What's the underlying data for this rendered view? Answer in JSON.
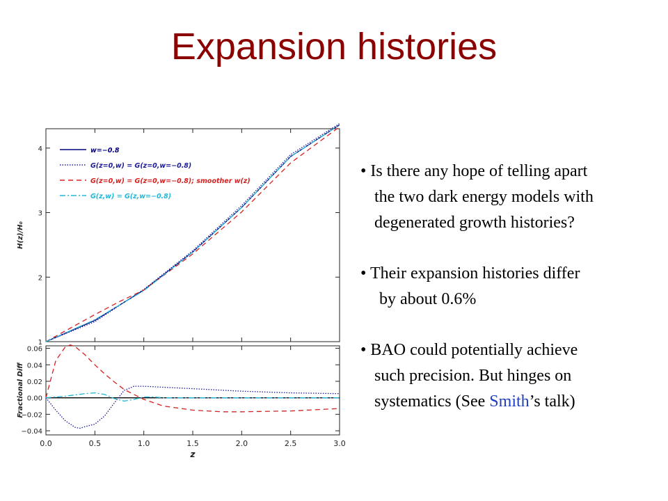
{
  "slide": {
    "title": "Expansion histories",
    "bullets": [
      {
        "lines": [
          "• Is there any hope of telling apart",
          "the two dark energy models with",
          "degenerated growth histories?"
        ]
      },
      {
        "lines": [
          "• Their expansion histories differ",
          "by about 0.6%"
        ]
      },
      {
        "lines": [
          "• BAO could potentially achieve",
          "such precision. But hinges on",
          "systematics (See "
        ],
        "highlight": "Smith",
        "tail": "’s talk)"
      }
    ]
  },
  "chart_data": [
    {
      "type": "line",
      "panel": "top",
      "ylabel": "H(z)/H₀",
      "xlim": [
        0,
        3
      ],
      "ylim": [
        1,
        4.3
      ],
      "yticks": [
        "1",
        "2",
        "3",
        "4"
      ],
      "legend_placement": "top-left",
      "series": [
        {
          "name": "w=−0.8",
          "color": "#000080",
          "dash": "solid",
          "x": [
            0,
            0.5,
            1,
            1.5,
            2,
            2.5,
            3
          ],
          "y": [
            1.0,
            1.33,
            1.8,
            2.39,
            3.08,
            3.87,
            4.36
          ]
        },
        {
          "name": "G(z=0,w) = G(z=0,w=−0.8)",
          "color": "#1a1a9a",
          "dash": "dotted",
          "x": [
            0,
            0.5,
            1,
            1.5,
            2,
            2.5,
            3
          ],
          "y": [
            1.0,
            1.31,
            1.81,
            2.41,
            3.11,
            3.9,
            4.38
          ]
        },
        {
          "name": "G(z=0,w) = G(z=0,w=−0.8); smoother w(z)",
          "color": "#d62020",
          "dash": "dashed",
          "x": [
            0,
            0.25,
            0.5,
            0.75,
            1,
            1.5,
            2,
            2.5,
            3
          ],
          "y": [
            1.0,
            1.21,
            1.42,
            1.62,
            1.8,
            2.36,
            3.01,
            3.77,
            4.33
          ]
        },
        {
          "name": "G(z,w) = G(z,w=−0.8)",
          "color": "#20b8d8",
          "dash": "dashdot",
          "x": [
            0,
            0.5,
            1,
            1.5,
            2,
            2.5,
            3
          ],
          "y": [
            1.0,
            1.34,
            1.79,
            2.39,
            3.08,
            3.87,
            4.36
          ]
        }
      ]
    },
    {
      "type": "line",
      "panel": "bottom",
      "xlabel": "z",
      "ylabel": "Fractional Diff",
      "xlim": [
        0,
        3
      ],
      "ylim": [
        -0.045,
        0.063
      ],
      "xticks": [
        "0.0",
        "0.5",
        "1.0",
        "1.5",
        "2.0",
        "2.5",
        "3.0"
      ],
      "yticks": [
        "−0.04",
        "−0.02",
        "0.00",
        "0.02",
        "0.04",
        "0.06"
      ],
      "series": [
        {
          "color": "#000000",
          "dash": "solid",
          "x": [
            0,
            3
          ],
          "y": [
            0,
            0
          ]
        },
        {
          "color": "#1a1a9a",
          "dash": "dotted",
          "x": [
            0,
            0.1,
            0.2,
            0.3,
            0.35,
            0.4,
            0.5,
            0.6,
            0.7,
            0.8,
            0.9,
            1.0,
            1.5,
            2.0,
            2.5,
            3.0
          ],
          "y": [
            0,
            -0.015,
            -0.028,
            -0.036,
            -0.037,
            -0.035,
            -0.032,
            -0.022,
            -0.006,
            0.009,
            0.014,
            0.014,
            0.011,
            0.008,
            0.006,
            0.005
          ]
        },
        {
          "color": "#d62020",
          "dash": "dashed",
          "x": [
            0,
            0.1,
            0.2,
            0.25,
            0.3,
            0.4,
            0.5,
            0.6,
            0.7,
            0.8,
            1.0,
            1.2,
            1.5,
            1.8,
            2.0,
            2.5,
            3.0
          ],
          "y": [
            0,
            0.045,
            0.062,
            0.064,
            0.062,
            0.052,
            0.04,
            0.029,
            0.019,
            0.01,
            -0.002,
            -0.01,
            -0.015,
            -0.017,
            -0.017,
            -0.016,
            -0.013
          ]
        },
        {
          "color": "#20b8d8",
          "dash": "dashdot",
          "x": [
            0,
            0.2,
            0.4,
            0.5,
            0.6,
            0.7,
            0.8,
            0.9,
            1.0,
            1.1,
            1.2,
            1.5,
            2.0,
            3.0
          ],
          "y": [
            0,
            0.002,
            0.005,
            0.006,
            0.004,
            -0.001,
            -0.004,
            -0.002,
            0.001,
            0.001,
            0.0,
            0.0,
            0.0,
            0.0
          ]
        }
      ]
    }
  ]
}
